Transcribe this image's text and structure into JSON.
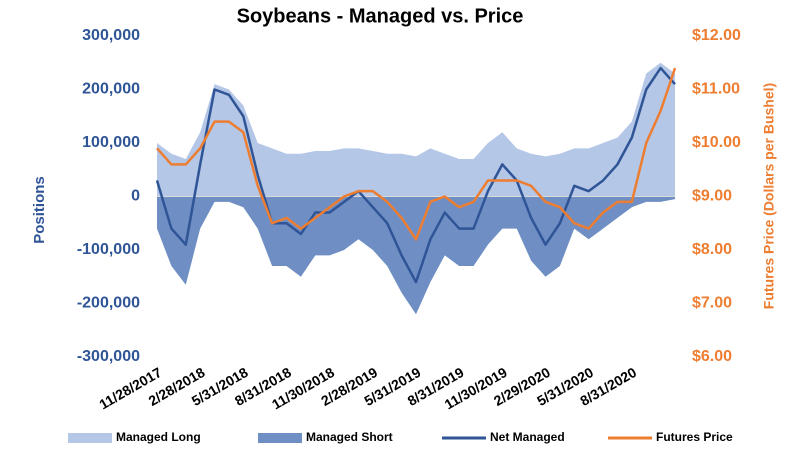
{
  "chart_data": {
    "type": "line",
    "title": "Soybeans - Managed vs. Price",
    "y_label": "Positions",
    "y2_label": "Futures Price (Dollars per Bushel)",
    "categories": [
      "11/28/2017",
      null,
      null,
      "2/28/2018",
      null,
      null,
      "5/31/2018",
      null,
      null,
      "8/31/2018",
      null,
      null,
      "11/30/2018",
      null,
      null,
      "2/28/2019",
      null,
      null,
      "5/31/2019",
      null,
      null,
      "8/31/2019",
      null,
      null,
      "11/30/2019",
      null,
      null,
      "2/29/2020",
      null,
      null,
      "5/31/2020",
      null,
      null,
      "8/31/2020",
      null,
      null,
      null
    ],
    "series": [
      {
        "name": "Managed Long",
        "kind": "area",
        "color": "#b4c7e7",
        "values": [
          100000,
          80000,
          70000,
          120000,
          210000,
          200000,
          170000,
          100000,
          90000,
          80000,
          80000,
          85000,
          85000,
          90000,
          90000,
          85000,
          80000,
          80000,
          75000,
          90000,
          80000,
          70000,
          70000,
          100000,
          120000,
          90000,
          80000,
          75000,
          80000,
          90000,
          90000,
          100000,
          110000,
          140000,
          230000,
          250000,
          230000
        ]
      },
      {
        "name": "Managed Short",
        "kind": "area",
        "color": "#6f8fc4",
        "values": [
          -60000,
          -130000,
          -165000,
          -60000,
          -10000,
          -10000,
          -20000,
          -60000,
          -130000,
          -130000,
          -150000,
          -110000,
          -110000,
          -100000,
          -80000,
          -100000,
          -130000,
          -180000,
          -220000,
          -160000,
          -110000,
          -130000,
          -130000,
          -90000,
          -60000,
          -60000,
          -120000,
          -150000,
          -130000,
          -60000,
          -80000,
          -60000,
          -40000,
          -20000,
          -10000,
          -10000,
          -5000
        ]
      },
      {
        "name": "Net Managed",
        "kind": "line",
        "color": "#2f5597",
        "values": [
          30000,
          -60000,
          -90000,
          60000,
          200000,
          190000,
          150000,
          40000,
          -50000,
          -50000,
          -70000,
          -30000,
          -30000,
          -10000,
          10000,
          -20000,
          -50000,
          -110000,
          -160000,
          -80000,
          -30000,
          -60000,
          -60000,
          10000,
          60000,
          30000,
          -40000,
          -90000,
          -50000,
          20000,
          10000,
          30000,
          60000,
          110000,
          200000,
          240000,
          210000
        ]
      },
      {
        "name": "Futures Price",
        "kind": "line",
        "axis": "y2",
        "color": "#ed7d31",
        "values": [
          9.9,
          9.6,
          9.6,
          9.9,
          10.4,
          10.4,
          10.2,
          9.2,
          8.5,
          8.6,
          8.4,
          8.6,
          8.8,
          9.0,
          9.1,
          9.1,
          8.9,
          8.6,
          8.2,
          8.9,
          9.0,
          8.8,
          8.9,
          9.3,
          9.3,
          9.3,
          9.2,
          8.9,
          8.8,
          8.5,
          8.4,
          8.7,
          8.9,
          8.9,
          10.0,
          10.6,
          11.4
        ]
      }
    ],
    "ylim": [
      -300000,
      300000
    ],
    "yticks": [
      {
        "value": -300000,
        "label": "-300,000"
      },
      {
        "value": -200000,
        "label": "-200,000"
      },
      {
        "value": -100000,
        "label": "-100,000"
      },
      0,
      {
        "value": 100000,
        "label": "100,000"
      },
      {
        "value": 200000,
        "label": "200,000"
      },
      {
        "value": 300000,
        "label": "300,000"
      }
    ],
    "y2lim": [
      6,
      12
    ],
    "y2ticks": [
      {
        "value": 6,
        "label": "$6.00"
      },
      {
        "value": 7,
        "label": "$7.00"
      },
      {
        "value": 8,
        "label": "$8.00"
      },
      {
        "value": 9,
        "label": "$9.00"
      },
      {
        "value": 10,
        "label": "$10.00"
      },
      {
        "value": 11,
        "label": "$11.00"
      },
      {
        "value": 12,
        "label": "$12.00"
      }
    ],
    "legend": "bottom"
  }
}
